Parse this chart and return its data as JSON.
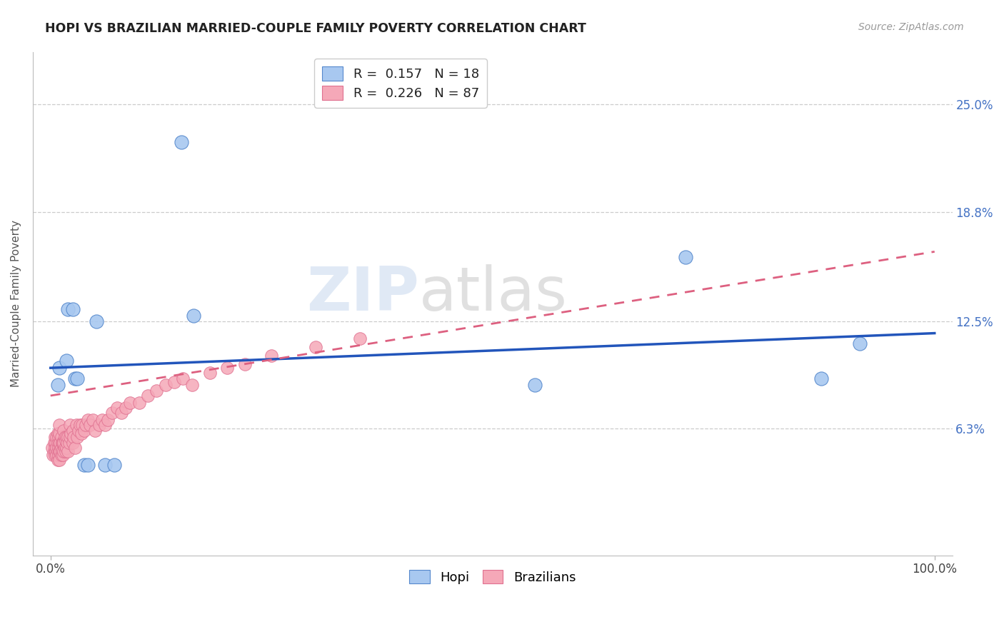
{
  "title": "HOPI VS BRAZILIAN MARRIED-COUPLE FAMILY POVERTY CORRELATION CHART",
  "source": "Source: ZipAtlas.com",
  "ylabel": "Married-Couple Family Poverty",
  "ytick_labels": [
    "25.0%",
    "18.8%",
    "12.5%",
    "6.3%"
  ],
  "ytick_values": [
    0.25,
    0.188,
    0.125,
    0.063
  ],
  "legend_hopi_R": "0.157",
  "legend_hopi_N": "18",
  "legend_brazil_R": "0.226",
  "legend_brazil_N": "87",
  "hopi_color": "#a8c8f0",
  "brazil_color": "#f5a8b8",
  "hopi_edge_color": "#5588cc",
  "brazil_edge_color": "#e07090",
  "hopi_line_color": "#2255bb",
  "brazil_line_color": "#dd6080",
  "hopi_x": [
    0.008,
    0.01,
    0.018,
    0.02,
    0.025,
    0.028,
    0.03,
    0.038,
    0.042,
    0.052,
    0.062,
    0.072,
    0.148,
    0.162,
    0.548,
    0.718,
    0.872,
    0.915
  ],
  "hopi_y": [
    0.088,
    0.098,
    0.102,
    0.132,
    0.132,
    0.092,
    0.092,
    0.042,
    0.042,
    0.125,
    0.042,
    0.042,
    0.228,
    0.128,
    0.088,
    0.162,
    0.092,
    0.112
  ],
  "brazil_x": [
    0.002,
    0.003,
    0.004,
    0.004,
    0.005,
    0.005,
    0.005,
    0.006,
    0.006,
    0.007,
    0.007,
    0.007,
    0.008,
    0.008,
    0.008,
    0.008,
    0.009,
    0.009,
    0.009,
    0.01,
    0.01,
    0.01,
    0.01,
    0.01,
    0.011,
    0.011,
    0.012,
    0.012,
    0.012,
    0.013,
    0.013,
    0.014,
    0.014,
    0.015,
    0.015,
    0.015,
    0.016,
    0.016,
    0.017,
    0.017,
    0.018,
    0.018,
    0.019,
    0.02,
    0.02,
    0.021,
    0.022,
    0.022,
    0.023,
    0.025,
    0.025,
    0.026,
    0.028,
    0.029,
    0.03,
    0.032,
    0.033,
    0.035,
    0.036,
    0.038,
    0.04,
    0.042,
    0.045,
    0.048,
    0.05,
    0.055,
    0.058,
    0.062,
    0.065,
    0.07,
    0.075,
    0.08,
    0.085,
    0.09,
    0.1,
    0.11,
    0.12,
    0.13,
    0.14,
    0.15,
    0.16,
    0.18,
    0.2,
    0.22,
    0.25,
    0.3,
    0.35
  ],
  "brazil_y": [
    0.052,
    0.048,
    0.05,
    0.055,
    0.048,
    0.052,
    0.058,
    0.05,
    0.055,
    0.048,
    0.052,
    0.058,
    0.045,
    0.05,
    0.055,
    0.06,
    0.048,
    0.052,
    0.058,
    0.045,
    0.05,
    0.055,
    0.06,
    0.065,
    0.05,
    0.055,
    0.048,
    0.052,
    0.058,
    0.05,
    0.055,
    0.048,
    0.055,
    0.05,
    0.055,
    0.062,
    0.052,
    0.058,
    0.05,
    0.056,
    0.052,
    0.058,
    0.055,
    0.05,
    0.058,
    0.055,
    0.058,
    0.065,
    0.06,
    0.055,
    0.062,
    0.058,
    0.052,
    0.065,
    0.058,
    0.062,
    0.065,
    0.06,
    0.065,
    0.062,
    0.065,
    0.068,
    0.065,
    0.068,
    0.062,
    0.065,
    0.068,
    0.065,
    0.068,
    0.072,
    0.075,
    0.072,
    0.075,
    0.078,
    0.078,
    0.082,
    0.085,
    0.088,
    0.09,
    0.092,
    0.088,
    0.095,
    0.098,
    0.1,
    0.105,
    0.11,
    0.115
  ],
  "hopi_trendline": [
    0.0,
    0.098,
    1.0,
    0.118
  ],
  "brazil_trendline": [
    0.0,
    0.082,
    1.0,
    0.165
  ],
  "xlim": [
    -0.02,
    1.02
  ],
  "ylim": [
    -0.01,
    0.28
  ],
  "background_color": "#ffffff",
  "grid_color": "#cccccc",
  "title_color": "#222222",
  "source_color": "#999999",
  "ylabel_color": "#555555",
  "ytick_color": "#4472c4",
  "xtick_color": "#444444"
}
